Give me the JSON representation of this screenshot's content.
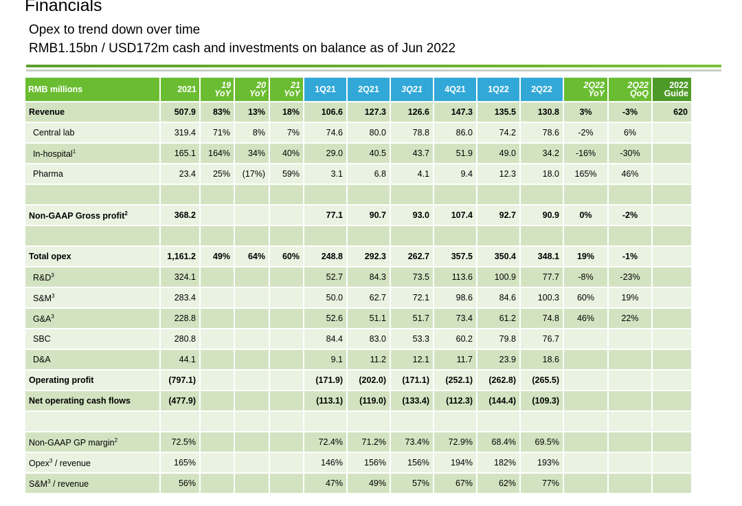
{
  "header": {
    "title": "Financials",
    "subtitle": "Opex to trend down over time",
    "subtitle2": "RMB1.15bn / USD172m cash and investments on balance as of Jun 2022"
  },
  "table": {
    "columns": {
      "label": "RMB millions",
      "y2021": "2021",
      "yoy19_top": "19",
      "yoy19_bot": "YoY",
      "yoy20_top": "20",
      "yoy20_bot": "YoY",
      "yoy21_top": "21",
      "yoy21_bot": "YoY",
      "q1_21": "1Q21",
      "q2_21": "2Q21",
      "q3_21": "3Q21",
      "q4_21": "4Q21",
      "q1_22": "1Q22",
      "q2_22": "2Q22",
      "q2yoy_top": "2Q22",
      "q2yoy_bot": "YoY",
      "q2qoq_top": "2Q22",
      "q2qoq_bot": "QoQ",
      "guide_top": "2022",
      "guide_bot": "Guide"
    },
    "rows": [
      {
        "label": "Revenue",
        "sup": "",
        "v": [
          "507.9",
          "83%",
          "13%",
          "18%",
          "106.6",
          "127.3",
          "126.6",
          "147.3",
          "135.5",
          "130.8",
          "3%",
          "-3%",
          "620"
        ]
      },
      {
        "label": "Central lab",
        "sup": "",
        "v": [
          "319.4",
          "71%",
          "8%",
          "7%",
          "74.6",
          "80.0",
          "78.8",
          "86.0",
          "74.2",
          "78.6",
          "-2%",
          "6%",
          ""
        ]
      },
      {
        "label": "In-hospital",
        "sup": "1",
        "v": [
          "165.1",
          "164%",
          "34%",
          "40%",
          "29.0",
          "40.5",
          "43.7",
          "51.9",
          "49.0",
          "34.2",
          "-16%",
          "-30%",
          ""
        ]
      },
      {
        "label": "Pharma",
        "sup": "",
        "v": [
          "23.4",
          "25%",
          "(17%)",
          "59%",
          "3.1",
          "6.8",
          "4.1",
          "9.4",
          "12.3",
          "18.0",
          "165%",
          "46%",
          ""
        ]
      },
      {
        "label": "",
        "sup": "",
        "v": [
          "",
          "",
          "",
          "",
          "",
          "",
          "",
          "",
          "",
          "",
          "",
          "",
          ""
        ]
      },
      {
        "label": "Non-GAAP Gross profit",
        "sup": "2",
        "v": [
          "368.2",
          "",
          "",
          "",
          "77.1",
          "90.7",
          "93.0",
          "107.4",
          "92.7",
          "90.9",
          "0%",
          "-2%",
          ""
        ]
      },
      {
        "label": "",
        "sup": "",
        "v": [
          "",
          "",
          "",
          "",
          "",
          "",
          "",
          "",
          "",
          "",
          "",
          "",
          ""
        ]
      },
      {
        "label": "Total opex",
        "sup": "",
        "v": [
          "1,161.2",
          "49%",
          "64%",
          "60%",
          "248.8",
          "292.3",
          "262.7",
          "357.5",
          "350.4",
          "348.1",
          "19%",
          "-1%",
          ""
        ]
      },
      {
        "label": "R&D",
        "sup": "3",
        "v": [
          "324.1",
          "",
          "",
          "",
          "52.7",
          "84.3",
          "73.5",
          "113.6",
          "100.9",
          "77.7",
          "-8%",
          "-23%",
          ""
        ]
      },
      {
        "label": "S&M",
        "sup": "3",
        "v": [
          "283.4",
          "",
          "",
          "",
          "50.0",
          "62.7",
          "72.1",
          "98.6",
          "84.6",
          "100.3",
          "60%",
          "19%",
          ""
        ]
      },
      {
        "label": "G&A",
        "sup": "3",
        "v": [
          "228.8",
          "",
          "",
          "",
          "52.6",
          "51.1",
          "51.7",
          "73.4",
          "61.2",
          "74.8",
          "46%",
          "22%",
          ""
        ]
      },
      {
        "label": "SBC",
        "sup": "",
        "v": [
          "280.8",
          "",
          "",
          "",
          "84.4",
          "83.0",
          "53.3",
          "60.2",
          "79.8",
          "76.7",
          "",
          "",
          ""
        ]
      },
      {
        "label": "D&A",
        "sup": "",
        "v": [
          "44.1",
          "",
          "",
          "",
          "9.1",
          "11.2",
          "12.1",
          "11.7",
          "23.9",
          "18.6",
          "",
          "",
          ""
        ]
      },
      {
        "label": "Operating profit",
        "sup": "",
        "v": [
          "(797.1)",
          "",
          "",
          "",
          "(171.9)",
          "(202.0)",
          "(171.1)",
          "(252.1)",
          "(262.8)",
          "(265.5)",
          "",
          "",
          ""
        ]
      },
      {
        "label": "Net operating cash flows",
        "sup": "",
        "v": [
          "(477.9)",
          "",
          "",
          "",
          "(113.1)",
          "(119.0)",
          "(133.4)",
          "(112.3)",
          "(144.4)",
          "(109.3)",
          "",
          "",
          ""
        ]
      },
      {
        "label": "",
        "sup": "",
        "v": [
          "",
          "",
          "",
          "",
          "",
          "",
          "",
          "",
          "",
          "",
          "",
          "",
          ""
        ]
      },
      {
        "label": "Non-GAAP GP margin",
        "sup": "2",
        "v": [
          "72.5%",
          "",
          "",
          "",
          "72.4%",
          "71.2%",
          "73.4%",
          "72.9%",
          "68.4%",
          "69.5%",
          "",
          "",
          ""
        ]
      },
      {
        "label": "Opex",
        "sup": "3",
        "suffix": " / revenue",
        "v": [
          "165%",
          "",
          "",
          "",
          "146%",
          "156%",
          "156%",
          "194%",
          "182%",
          "193%",
          "",
          "",
          ""
        ]
      },
      {
        "label": "S&M",
        "sup": "3",
        "suffix": " / revenue",
        "v": [
          "56%",
          "",
          "",
          "",
          "47%",
          "49%",
          "57%",
          "67%",
          "62%",
          "77%",
          "",
          "",
          ""
        ]
      }
    ]
  },
  "colors": {
    "header_green": "#6abd31",
    "header_blue": "#31a8d8",
    "header_dark_green": "#4e9a28",
    "row_band_dark": "#d3e3c1",
    "row_band_light": "#eaf2e1"
  }
}
